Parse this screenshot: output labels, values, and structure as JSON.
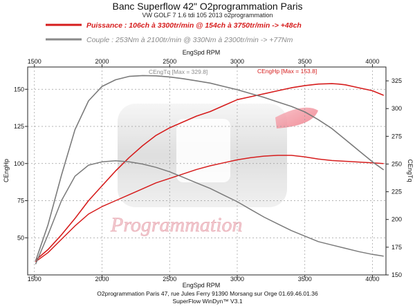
{
  "header": {
    "title": "Banc Superflow 42\" O2programmation Paris",
    "subtitle": "VW GOLF 7 1.6 tdi 105 2013 o2programmation"
  },
  "legend": {
    "power": "Puissance : 106ch à 3300tr/min @ 154ch à 3750tr/min  -> +48ch",
    "torque": "Couple :  253Nm à 2100tr/min @ 330Nm à 2300tr/min -> +77Nm"
  },
  "watermark": "Programmation",
  "footer": {
    "line1": "O2programmation Paris 47, rue Jules Ferry 91390 Morsang sur Orge 01.69.46.01.36",
    "line2": "SuperFlow WinDyn™ V3.1"
  },
  "colors": {
    "power": "#d61c1c",
    "torque": "#7a7a7a"
  },
  "chart_data": {
    "type": "line",
    "xlabel": "EngSpd RPM",
    "ylabel": "CEngHp",
    "y2label": "CEngTq",
    "xlim": [
      1450,
      4100
    ],
    "ylim": [
      25,
      165
    ],
    "y2lim": [
      150,
      337.5
    ],
    "x_ticks": [
      1500,
      2000,
      2500,
      3000,
      3500,
      4000
    ],
    "y_ticks": [
      50,
      75,
      100,
      125,
      150
    ],
    "y2_ticks": [
      150,
      175,
      200,
      225,
      250,
      275,
      300,
      325
    ],
    "grid": true,
    "annotations": {
      "torque_max": "CEngTq [Max = 329.8]",
      "power_max": "CEngHp [Max = 153.8]"
    },
    "series": [
      {
        "name": "Puissance",
        "axis": "left",
        "style": "tuned",
        "x": [
          1510,
          1600,
          1700,
          1800,
          1900,
          2000,
          2100,
          2200,
          2300,
          2400,
          2500,
          2600,
          2700,
          2800,
          2900,
          3000,
          3100,
          3200,
          3300,
          3400,
          3500,
          3600,
          3700,
          3750,
          3800,
          3900,
          4000,
          4080
        ],
        "y": [
          35,
          42,
          52,
          63,
          75,
          85,
          95,
          104,
          112,
          119,
          124,
          128,
          132,
          135,
          139,
          143,
          145,
          147,
          149,
          151,
          152.5,
          153.5,
          153.8,
          153.5,
          153,
          151,
          149,
          146
        ]
      },
      {
        "name": "Puissance",
        "axis": "left",
        "style": "stock",
        "x": [
          1510,
          1600,
          1700,
          1800,
          1900,
          2000,
          2100,
          2200,
          2300,
          2400,
          2500,
          2600,
          2700,
          2800,
          2900,
          3000,
          3100,
          3200,
          3300,
          3400,
          3500,
          3600,
          3700,
          3800,
          3900,
          4000,
          4080
        ],
        "y": [
          34,
          40,
          49,
          58,
          66,
          71,
          75,
          79,
          83,
          87,
          90,
          93,
          96,
          98.5,
          100.5,
          102.5,
          104,
          105,
          105.5,
          105.5,
          104.5,
          103,
          102,
          101.5,
          101,
          100.5,
          100
        ]
      },
      {
        "name": "Couple",
        "axis": "right",
        "style": "tuned",
        "x": [
          1510,
          1600,
          1700,
          1800,
          1900,
          2000,
          2100,
          2200,
          2300,
          2400,
          2500,
          2600,
          2700,
          2800,
          2900,
          3000,
          3100,
          3200,
          3300,
          3400,
          3500,
          3600,
          3700,
          3800,
          3900,
          4000,
          4080
        ],
        "y": [
          163,
          195,
          240,
          281,
          307,
          320,
          326,
          329,
          329.8,
          329.5,
          328.5,
          327,
          325,
          323,
          320,
          317,
          313.5,
          310,
          306,
          302,
          297,
          290,
          282,
          272,
          262,
          252,
          245
        ]
      },
      {
        "name": "Couple",
        "axis": "right",
        "style": "stock",
        "x": [
          1510,
          1600,
          1700,
          1800,
          1900,
          2000,
          2100,
          2200,
          2300,
          2400,
          2500,
          2600,
          2700,
          2800,
          2900,
          3000,
          3100,
          3200,
          3300,
          3400,
          3500,
          3600,
          3700,
          3800,
          3900,
          4000,
          4080
        ],
        "y": [
          160,
          186,
          217,
          239,
          249,
          252,
          253,
          252,
          250,
          247,
          243,
          238,
          233,
          228,
          222,
          216,
          209,
          202,
          196,
          190,
          185,
          180,
          177,
          174,
          171,
          168.5,
          167
        ]
      }
    ]
  }
}
